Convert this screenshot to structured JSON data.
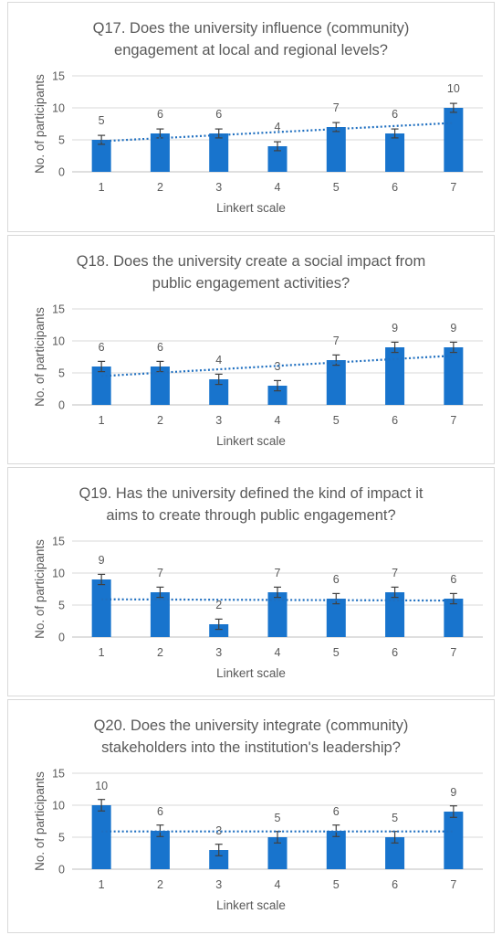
{
  "chart_data": [
    {
      "type": "bar",
      "title_lines": [
        "Q17. Does the university influence (community)",
        "engagement at local and regional levels?"
      ],
      "xlabel": "Linkert scale",
      "ylabel": "No. of participants",
      "categories": [
        "1",
        "2",
        "3",
        "4",
        "5",
        "6",
        "7"
      ],
      "values": [
        5,
        6,
        6,
        4,
        7,
        6,
        10
      ],
      "ylim": [
        0,
        15
      ],
      "yticks": [
        0,
        5,
        10,
        15
      ],
      "error": 0.7,
      "trendline": {
        "type": "linear",
        "start": 4.79,
        "end": 7.64
      },
      "grid": true,
      "bar_color": "#1874cd"
    },
    {
      "type": "bar",
      "title_lines": [
        "Q18. Does the university create a social impact from",
        "public engagement activities?"
      ],
      "xlabel": "Linkert scale",
      "ylabel": "No. of participants",
      "categories": [
        "1",
        "2",
        "3",
        "4",
        "5",
        "6",
        "7"
      ],
      "values": [
        6,
        6,
        4,
        3,
        7,
        9,
        9
      ],
      "ylim": [
        0,
        15
      ],
      "yticks": [
        0,
        5,
        10,
        15
      ],
      "error": 0.8,
      "trendline": {
        "type": "linear",
        "start": 4.5,
        "end": 7.7
      },
      "grid": true,
      "bar_color": "#1874cd"
    },
    {
      "type": "bar",
      "title_lines": [
        "Q19. Has the university defined the kind of impact it",
        "aims to create through public engagement?"
      ],
      "xlabel": "Linkert scale",
      "ylabel": "No. of participants",
      "categories": [
        "1",
        "2",
        "3",
        "4",
        "5",
        "6",
        "7"
      ],
      "values": [
        9,
        7,
        2,
        7,
        6,
        7,
        6
      ],
      "ylim": [
        0,
        15
      ],
      "yticks": [
        0,
        5,
        10,
        15
      ],
      "error": 0.8,
      "trendline": {
        "type": "linear",
        "start": 5.9,
        "end": 5.7
      },
      "grid": true,
      "bar_color": "#1874cd"
    },
    {
      "type": "bar",
      "title_lines": [
        "Q20. Does the university integrate (community)",
        "stakeholders into the institution's leadership?"
      ],
      "xlabel": "Linkert scale",
      "ylabel": "No. of participants",
      "categories": [
        "1",
        "2",
        "3",
        "4",
        "5",
        "6",
        "7"
      ],
      "values": [
        10,
        6,
        3,
        5,
        6,
        5,
        9
      ],
      "ylim": [
        0,
        15
      ],
      "yticks": [
        0,
        5,
        10,
        15
      ],
      "error": 0.9,
      "trendline": {
        "type": "linear",
        "start": 5.9,
        "end": 5.9
      },
      "grid": true,
      "bar_color": "#1874cd"
    }
  ]
}
